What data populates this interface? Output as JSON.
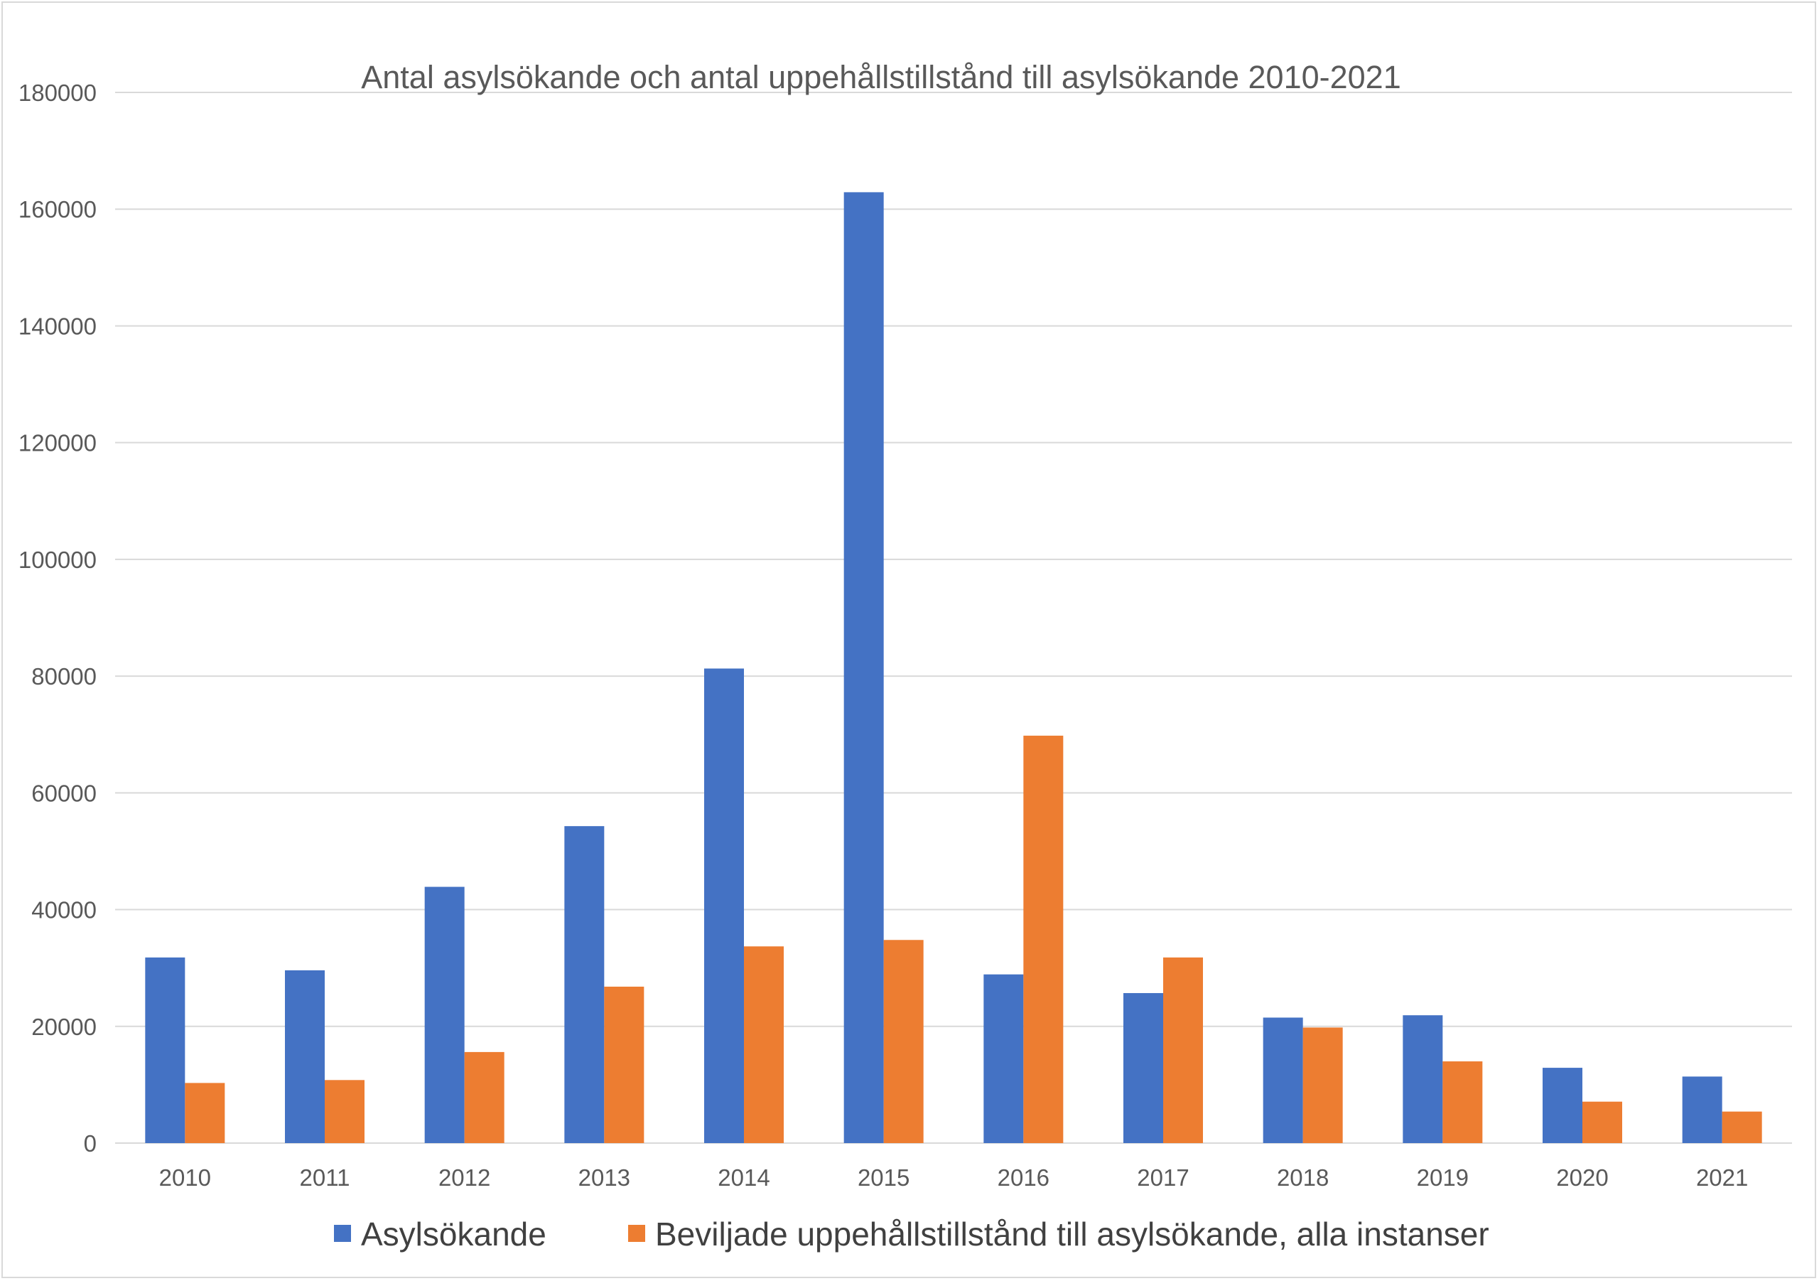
{
  "chart_data": {
    "type": "bar",
    "title": "Antal asylsökande och antal uppehållstillstånd till asylsökande 2010-2021",
    "xlabel": "",
    "ylabel": "",
    "ylim": [
      0,
      180000
    ],
    "yticks": [
      0,
      20000,
      40000,
      60000,
      80000,
      100000,
      120000,
      140000,
      160000,
      180000
    ],
    "grid": true,
    "legend_position": "bottom",
    "categories": [
      "2010",
      "2011",
      "2012",
      "2013",
      "2014",
      "2015",
      "2016",
      "2017",
      "2018",
      "2019",
      "2020",
      "2021"
    ],
    "series": [
      {
        "name": "Asylsökande",
        "color": "#4472c4",
        "values": [
          31800,
          29600,
          43900,
          54300,
          81300,
          162900,
          28900,
          25700,
          21500,
          21900,
          12900,
          11400
        ]
      },
      {
        "name": "Beviljade uppehållstillstånd till asylsökande, alla instanser",
        "color": "#ed7d31",
        "values": [
          10300,
          10800,
          15600,
          26800,
          33700,
          34800,
          69800,
          31800,
          19800,
          14000,
          7100,
          5400
        ]
      }
    ]
  }
}
